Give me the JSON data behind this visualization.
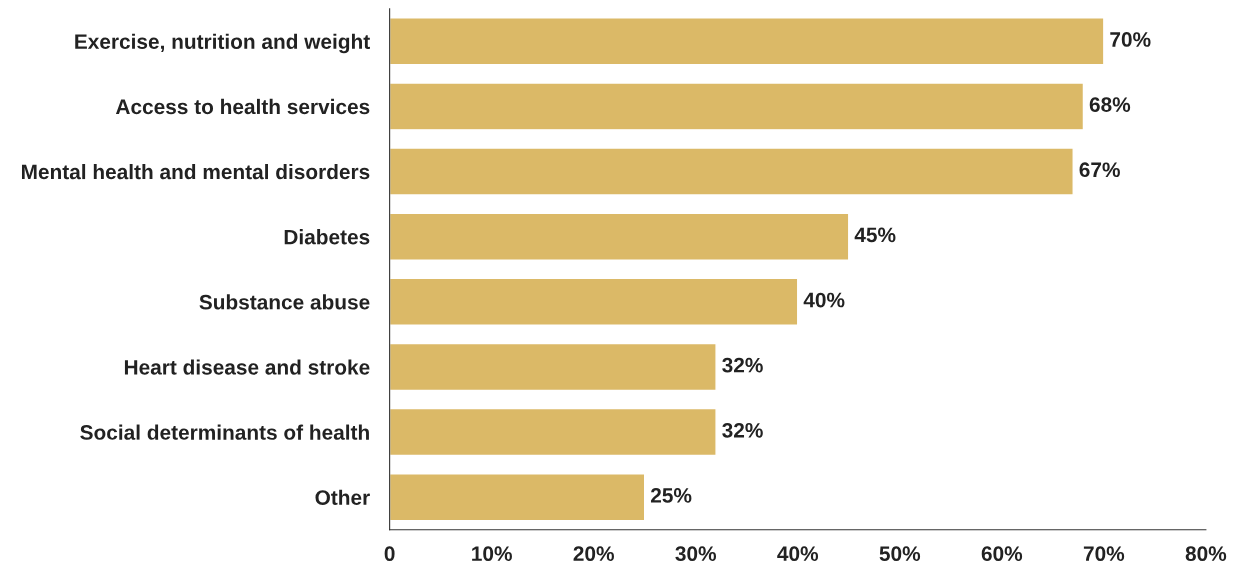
{
  "chart_data": {
    "type": "bar",
    "orientation": "horizontal",
    "categories": [
      "Exercise, nutrition and weight",
      "Access to health services",
      "Mental health and mental disorders",
      "Diabetes",
      "Substance abuse",
      "Heart disease and stroke",
      "Social determinants of health",
      "Other"
    ],
    "values": [
      70,
      68,
      67,
      45,
      40,
      32,
      32,
      25
    ],
    "value_labels": [
      "70%",
      "68%",
      "67%",
      "45%",
      "40%",
      "32%",
      "32%",
      "25%"
    ],
    "color": "#dbb967",
    "xlim": [
      0,
      80
    ],
    "xticks": [
      0,
      {
        "value": 10,
        "label": "10%"
      },
      {
        "value": 20,
        "label": "20%"
      },
      {
        "value": 30,
        "label": "30%"
      },
      {
        "value": 40,
        "label": "40%"
      },
      {
        "value": 50,
        "label": "50%"
      },
      {
        "value": 60,
        "label": "60%"
      },
      {
        "value": 70,
        "label": "70%"
      },
      {
        "value": 80,
        "label": "80%"
      }
    ],
    "grid": false,
    "legend": false
  }
}
